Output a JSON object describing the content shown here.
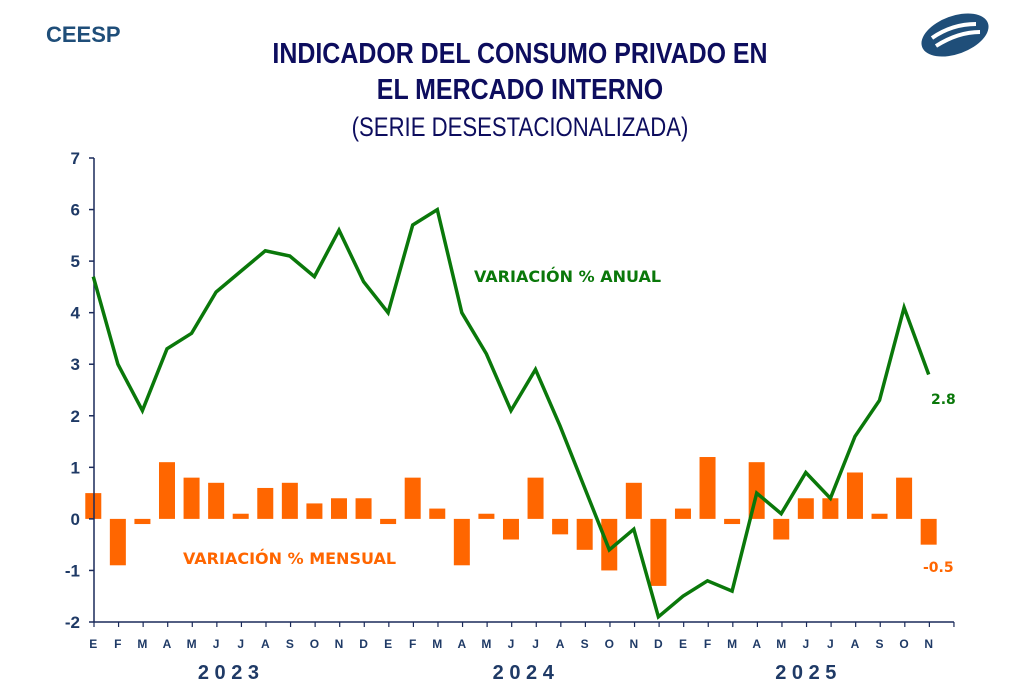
{
  "header": {
    "brand": "CEESP",
    "title_line1": "INDICADOR DEL CONSUMO PRIVADO EN",
    "title_line2": "EL MERCADO INTERNO",
    "subtitle": "(SERIE DESESTACIONALIZADA)"
  },
  "colors": {
    "annual": "#0a780a",
    "monthly": "#ff6600",
    "axis": "#1a2a5a",
    "title": "#0d0d5e",
    "brand": "#1f4e79"
  },
  "chart_data": {
    "type": "bar+line",
    "title": "INDICADOR DEL CONSUMO PRIVADO EN EL MERCADO INTERNO",
    "subtitle": "(SERIE DESESTACIONALIZADA)",
    "ylim": [
      -2,
      7
    ],
    "yticks": [
      "7",
      "6",
      "5",
      "4",
      "3",
      "2",
      "1",
      "0",
      "-1",
      "-2"
    ],
    "ytick_values": [
      7,
      6,
      5,
      4,
      3,
      2,
      1,
      0,
      -1,
      -2
    ],
    "categories": [
      "E",
      "F",
      "M",
      "A",
      "M",
      "J",
      "J",
      "A",
      "S",
      "O",
      "N",
      "D",
      "E",
      "F",
      "M",
      "A",
      "M",
      "J",
      "J",
      "A",
      "S",
      "O",
      "N",
      "D",
      "E",
      "F",
      "M",
      "A",
      "M",
      "J",
      "J",
      "A",
      "S",
      "O",
      "N"
    ],
    "years": [
      {
        "label": "2 0 2 3",
        "start": 0,
        "end": 11
      },
      {
        "label": "2 0 2 4",
        "start": 12,
        "end": 23
      },
      {
        "label": "2 0 2 5",
        "start": 24,
        "end": 34
      }
    ],
    "series": [
      {
        "name": "VARIACIÓN % ANUAL",
        "type": "line",
        "values": [
          4.7,
          3.0,
          2.1,
          3.3,
          3.6,
          4.4,
          4.8,
          5.2,
          5.1,
          4.7,
          5.6,
          4.6,
          4.0,
          5.7,
          6.0,
          4.0,
          3.2,
          2.1,
          2.9,
          1.8,
          0.6,
          -0.6,
          -0.2,
          -1.9,
          -1.5,
          -1.2,
          -1.4,
          0.5,
          0.1,
          0.9,
          0.4,
          1.6,
          2.3,
          4.1,
          2.8
        ],
        "last_label": "2.8"
      },
      {
        "name": "VARIACIÓN % MENSUAL",
        "type": "bar",
        "values": [
          0.5,
          -0.9,
          -0.1,
          1.1,
          0.8,
          0.7,
          0.1,
          0.6,
          0.7,
          0.3,
          0.4,
          0.4,
          -0.1,
          0.8,
          0.2,
          -0.9,
          0.1,
          -0.4,
          0.8,
          -0.3,
          -0.6,
          -1.0,
          0.7,
          -1.3,
          0.2,
          1.2,
          -0.1,
          1.1,
          -0.4,
          0.4,
          0.4,
          0.9,
          0.1,
          0.8,
          -0.5
        ],
        "last_label": "-0.5"
      }
    ]
  }
}
